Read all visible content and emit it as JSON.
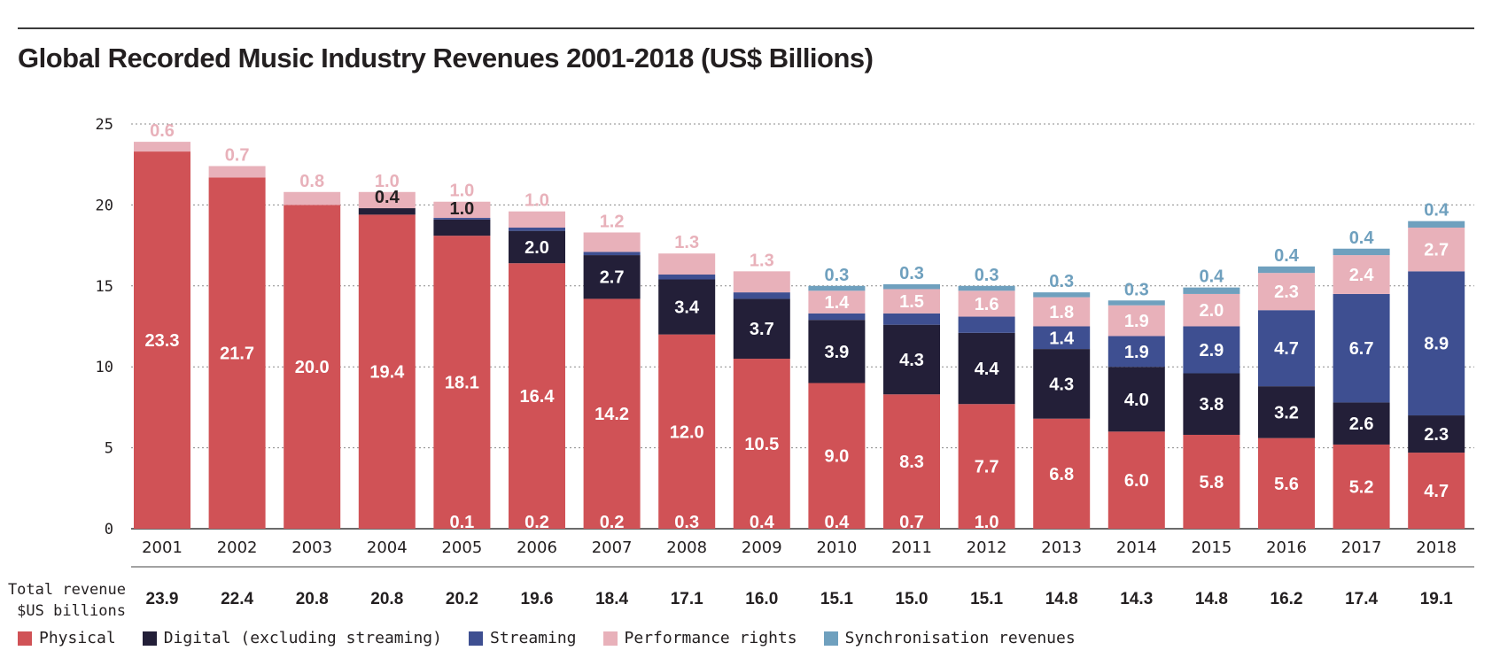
{
  "title": "Global Recorded Music Industry Revenues 2001-2018 (US$ Billions)",
  "total_label_line1": "Total revenue",
  "total_label_line2": "$US billions",
  "colors": {
    "physical": "#d05256",
    "digital": "#231f38",
    "streaming": "#3e4f91",
    "performance": "#e8b1ba",
    "sync": "#6fa0be"
  },
  "chart_data": {
    "type": "bar",
    "stacked": true,
    "categories": [
      "2001",
      "2002",
      "2003",
      "2004",
      "2005",
      "2006",
      "2007",
      "2008",
      "2009",
      "2010",
      "2011",
      "2012",
      "2013",
      "2014",
      "2015",
      "2016",
      "2017",
      "2018"
    ],
    "ylim": [
      0,
      25
    ],
    "yticks": [
      0,
      5,
      10,
      15,
      20,
      25
    ],
    "grid": true,
    "legend_position": "bottom",
    "series": [
      {
        "name": "Physical",
        "key": "physical",
        "values": [
          23.3,
          21.7,
          20.0,
          19.4,
          18.1,
          16.4,
          14.2,
          12.0,
          10.5,
          9.0,
          8.3,
          7.7,
          6.8,
          6.0,
          5.8,
          5.6,
          5.2,
          4.7
        ]
      },
      {
        "name": "Digital (excluding streaming)",
        "key": "digital",
        "values": [
          0,
          0,
          0,
          0.4,
          1.0,
          2.0,
          2.7,
          3.4,
          3.7,
          3.9,
          4.3,
          4.4,
          4.3,
          4.0,
          3.8,
          3.2,
          2.6,
          2.3
        ]
      },
      {
        "name": "Streaming",
        "key": "streaming",
        "values": [
          0,
          0,
          0,
          0,
          0.1,
          0.2,
          0.2,
          0.3,
          0.4,
          0.4,
          0.7,
          1.0,
          1.4,
          1.9,
          2.9,
          4.7,
          6.7,
          8.9
        ]
      },
      {
        "name": "Performance rights",
        "key": "performance",
        "values": [
          0.6,
          0.7,
          0.8,
          1.0,
          1.0,
          1.0,
          1.2,
          1.3,
          1.3,
          1.4,
          1.5,
          1.6,
          1.8,
          1.9,
          2.0,
          2.3,
          2.4,
          2.7
        ]
      },
      {
        "name": "Synchronisation revenues",
        "key": "sync",
        "values": [
          0,
          0,
          0,
          0,
          0,
          0,
          0,
          0,
          0,
          0.3,
          0.3,
          0.3,
          0.3,
          0.3,
          0.4,
          0.4,
          0.4,
          0.4
        ]
      }
    ],
    "totals": [
      "23.9",
      "22.4",
      "20.8",
      "20.8",
      "20.2",
      "19.6",
      "18.4",
      "17.1",
      "16.0",
      "15.1",
      "15.0",
      "15.1",
      "14.8",
      "14.3",
      "14.8",
      "16.2",
      "17.4",
      "19.1"
    ]
  }
}
